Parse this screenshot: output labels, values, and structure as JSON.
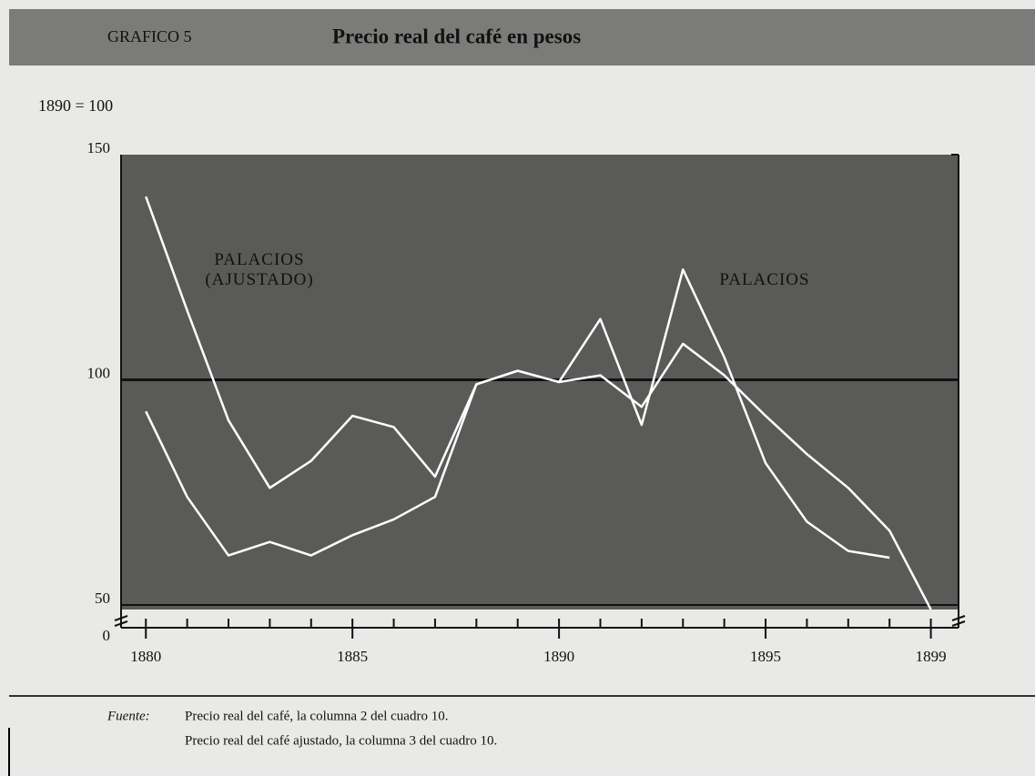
{
  "chart_data": {
    "type": "line",
    "figure_label": "GRAFICO 5",
    "title": "Precio real del café en pesos",
    "ylabel": "1890 = 100",
    "x": [
      1880,
      1881,
      1882,
      1883,
      1884,
      1885,
      1886,
      1887,
      1888,
      1889,
      1890,
      1891,
      1892,
      1893,
      1894,
      1895,
      1896,
      1897,
      1898,
      1899
    ],
    "series": [
      {
        "name": "PALACIOS (AJUSTADO)",
        "color": "#ffffff",
        "values": [
          140.7,
          115.4,
          91,
          76,
          82,
          92,
          89.5,
          78.5,
          99,
          102,
          99.5,
          101,
          94,
          108,
          101,
          92,
          83.5,
          76,
          66.5,
          49
        ]
      },
      {
        "name": "PALACIOS",
        "color": "#ffffff",
        "values": [
          93,
          74,
          61,
          64,
          61,
          65.5,
          69,
          74,
          99,
          102,
          99.5,
          113.5,
          90,
          124.5,
          105,
          81.5,
          68.5,
          62,
          60.5,
          null
        ]
      }
    ],
    "xlim": [
      1879.4,
      1899.67
    ],
    "xticks": [
      1880,
      1885,
      1890,
      1895,
      1899
    ],
    "ylim": [
      50,
      150
    ],
    "yticks": [
      50,
      100,
      150
    ],
    "y_break_tick": 0,
    "reference_line": 100,
    "source_label": "Fuente:",
    "source_lines": [
      "Precio real del café, la columna 2 del cuadro 10.",
      "Precio real del café ajustado, la columna 3 del cuadro 10."
    ]
  }
}
